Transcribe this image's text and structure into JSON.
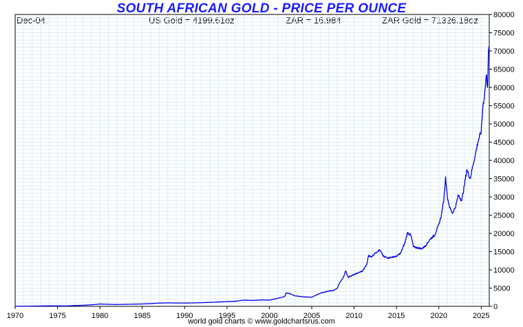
{
  "header": {
    "title": "SOUTH AFRICAN GOLD - PRICE PER OUNCE",
    "date": "Dec-04",
    "us_gold": "US Gold = 4199.61oz",
    "zar_rate": "ZAR = 16.984",
    "zar_gold": "ZAR Gold = 71326.18oz"
  },
  "footer": {
    "credit": "world gold charts © www.goldchartsrus.com"
  },
  "colors": {
    "title": "#1a1aff",
    "line": "#0000e6",
    "grid": "#dcecf5",
    "axis": "#000000"
  },
  "chart_data": {
    "type": "line",
    "title": "SOUTH AFRICAN GOLD - PRICE PER OUNCE",
    "xlabel": "",
    "ylabel": "",
    "xlim": [
      1970,
      2025.95
    ],
    "ylim": [
      0,
      80000
    ],
    "x_ticks": [
      "1970",
      "1975",
      "1980",
      "1985",
      "1990",
      "1995",
      "2000",
      "2005",
      "2010",
      "2015",
      "2020",
      "2025"
    ],
    "y_ticks": [
      "0",
      "5000",
      "10000",
      "15000",
      "20000",
      "25000",
      "30000",
      "35000",
      "40000",
      "45000",
      "50000",
      "55000",
      "60000",
      "65000",
      "70000",
      "75000",
      "80000"
    ],
    "grid": true,
    "series": [
      {
        "name": "",
        "x": [
          1970,
          1972,
          1974,
          1976,
          1978,
          1979.5,
          1980,
          1981,
          1982,
          1984,
          1985,
          1986,
          1987,
          1988,
          1990,
          1992,
          1993,
          1994,
          1996,
          1997,
          1998,
          1999,
          2000,
          2001,
          2001.8,
          2002,
          2002.5,
          2003,
          2004,
          2005,
          2006,
          2007,
          2007.5,
          2008,
          2008.3,
          2008.7,
          2009,
          2009.3,
          2010,
          2011,
          2011.5,
          2011.7,
          2012,
          2012.5,
          2013,
          2013.5,
          2014,
          2015,
          2015.5,
          2016,
          2016.3,
          2016.7,
          2017,
          2018,
          2018.5,
          2019,
          2019.5,
          2020,
          2020.3,
          2020.6,
          2020.8,
          2021,
          2021.3,
          2021.6,
          2022,
          2022.3,
          2022.7,
          2023,
          2023.3,
          2023.7,
          2024,
          2024.3,
          2024.6,
          2025,
          2025.2,
          2025.4,
          2025.6,
          2025.75,
          2025.85,
          2025.92
        ],
        "y": [
          25,
          60,
          150,
          120,
          300,
          500,
          650,
          550,
          500,
          600,
          650,
          750,
          900,
          950,
          900,
          1000,
          1100,
          1200,
          1400,
          1700,
          1600,
          1750,
          1700,
          2200,
          2700,
          3700,
          3400,
          2900,
          2600,
          2500,
          3600,
          4200,
          4300,
          4900,
          6500,
          7800,
          9700,
          8000,
          8700,
          9700,
          11500,
          14000,
          13500,
          14600,
          15500,
          13600,
          13300,
          13700,
          14600,
          17500,
          20200,
          19500,
          16300,
          15800,
          16800,
          18500,
          19500,
          22500,
          25000,
          29500,
          35500,
          30000,
          27000,
          25500,
          27500,
          30500,
          29000,
          33000,
          37500,
          35000,
          38500,
          41500,
          45000,
          48000,
          55000,
          58000,
          63500,
          60000,
          70000,
          71326
        ]
      }
    ]
  }
}
